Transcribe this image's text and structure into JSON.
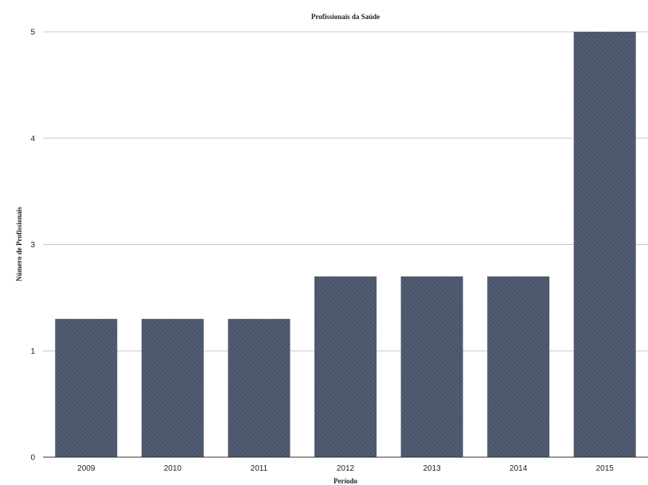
{
  "colors": {
    "bar": "#4a5569",
    "bar_hatch": "#5d6980"
  },
  "chart_data": {
    "type": "bar",
    "title": "Profissionais da Saúde",
    "xlabel": "Período",
    "ylabel": "Número de Profissionais",
    "categories": [
      "2009",
      "2010",
      "2011",
      "2012",
      "2013",
      "2014",
      "2015"
    ],
    "values": [
      1.6,
      1.6,
      1.6,
      2.4,
      2.4,
      2.4,
      5
    ],
    "yticks": [
      "0",
      "1",
      "3",
      "4",
      "5"
    ],
    "grid": true,
    "legend": "none"
  }
}
